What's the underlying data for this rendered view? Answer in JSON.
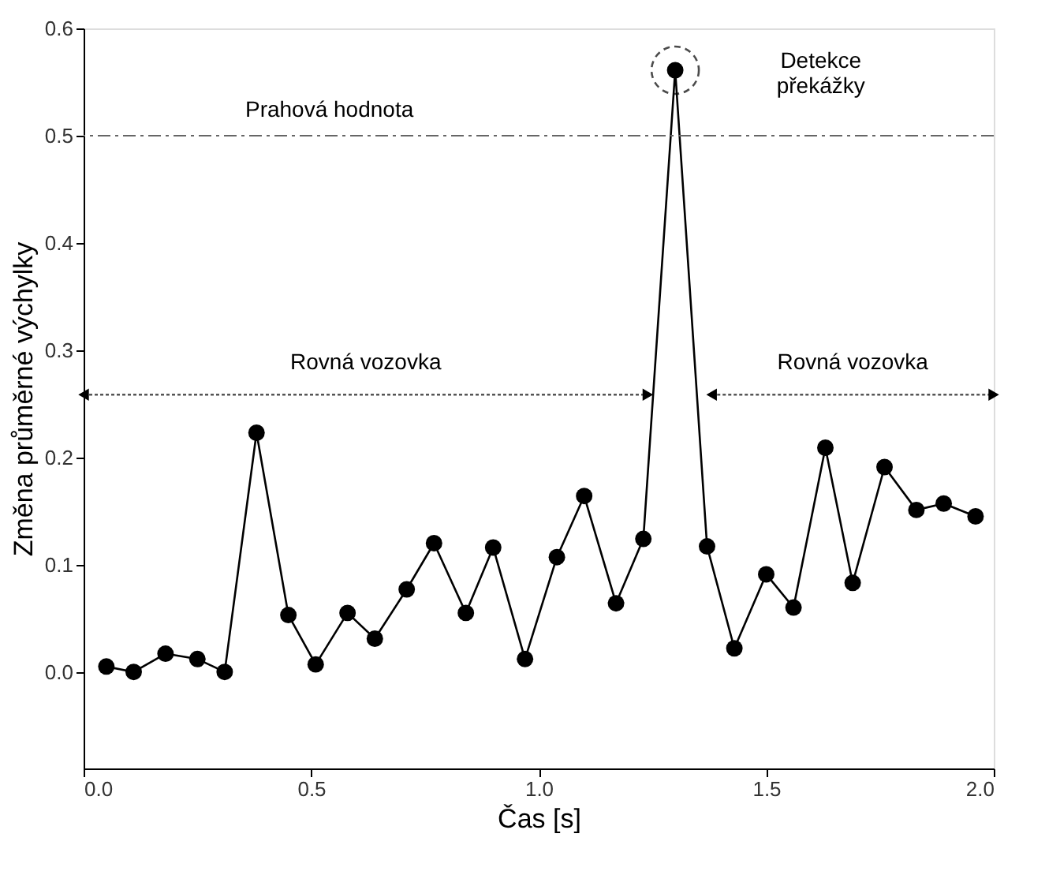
{
  "chart_data": {
    "type": "line",
    "xlabel": "Čas [s]",
    "ylabel": "Změna průměrné výchylky",
    "x": [
      0.05,
      0.11,
      0.18,
      0.25,
      0.31,
      0.38,
      0.45,
      0.51,
      0.58,
      0.64,
      0.71,
      0.77,
      0.84,
      0.9,
      0.97,
      1.04,
      1.1,
      1.17,
      1.23,
      1.3,
      1.37,
      1.43,
      1.5,
      1.56,
      1.63,
      1.69,
      1.76,
      1.83,
      1.89,
      1.96
    ],
    "series": [
      {
        "color": "#000000",
        "values": [
          0.005,
          0.0,
          0.017,
          0.012,
          0.0,
          0.223,
          0.053,
          0.007,
          0.055,
          0.031,
          0.077,
          0.12,
          0.055,
          0.116,
          0.012,
          0.107,
          0.164,
          0.064,
          0.124,
          0.561,
          0.117,
          0.022,
          0.091,
          0.06,
          0.209,
          0.083,
          0.191,
          0.151,
          0.157,
          0.145
        ]
      }
    ],
    "marker": "circle",
    "line_style": "solid",
    "grid": false,
    "xlim": [
      0.0,
      2.0
    ],
    "ylim": [
      -0.09,
      0.6
    ],
    "xticks": [
      {
        "value": 0,
        "label": "0.0"
      },
      {
        "value": 0.5,
        "label": "0.5"
      },
      {
        "value": 1,
        "label": "1.0"
      },
      {
        "value": 1.5,
        "label": "1.5"
      },
      {
        "value": 2,
        "label": "2.0"
      }
    ],
    "yticks": [
      {
        "value": 0,
        "label": "0.0"
      },
      {
        "value": 0.1,
        "label": "0.1"
      },
      {
        "value": 0.2,
        "label": "0.2"
      },
      {
        "value": 0.3,
        "label": "0.3"
      },
      {
        "value": 0.4,
        "label": "0.4"
      },
      {
        "value": 0.5,
        "label": "0.5"
      },
      {
        "value": 0.6,
        "label": "0.6"
      }
    ],
    "ref_lines": [
      {
        "axis": "y",
        "value": 0.5,
        "label": "Prahová hodnota",
        "color": "#666666",
        "line_style": "dashdot"
      }
    ],
    "annotations": [
      "Rovná vozovka",
      "Rovná vozovka",
      "Detekce překážky"
    ]
  }
}
